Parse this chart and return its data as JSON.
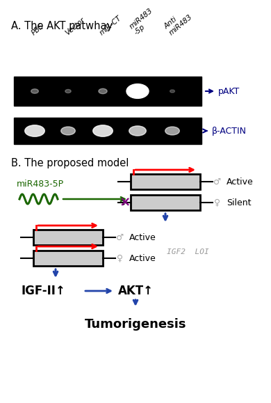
{
  "title_a": "A. The AKT patwhay",
  "title_b": "B. The proposed model",
  "lane_labels": [
    "PBS",
    "Vector",
    "miR-CT",
    "miR483\n-5p",
    "Anti\nmiR483"
  ],
  "label_pakt": "pAKT",
  "label_bactin": "β-ACTIN",
  "band_intensities_pakt": [
    0.28,
    0.22,
    0.32,
    0.9,
    0.18
  ],
  "band_intensities_bactin": [
    0.72,
    0.52,
    0.72,
    0.62,
    0.52
  ],
  "bg_color": "#000000",
  "arrow_color_blue": "#2244aa",
  "arrow_color_red": "#cc0000",
  "green_dark": "#1a6600",
  "cross_color": "#9933cc",
  "igf2_loi_color": "#999999",
  "symbol_color": "#aaaaaa",
  "text_color": "#000000",
  "box_face": "#cccccc",
  "box_edge": "#000000"
}
